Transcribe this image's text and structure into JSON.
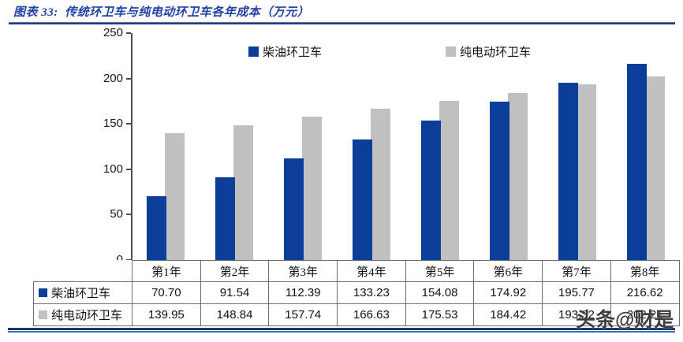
{
  "header": {
    "title": "图表 33:  传统环卫车与纯电动环卫车各年成本（万元）"
  },
  "chart_data": {
    "type": "bar",
    "title": "传统环卫车与纯电动环卫车各年成本（万元）",
    "categories": [
      "第1年",
      "第2年",
      "第3年",
      "第4年",
      "第5年",
      "第6年",
      "第7年",
      "第8年"
    ],
    "series": [
      {
        "name": "柴油环卫车",
        "color": "#0b3e98",
        "values": [
          70.7,
          91.54,
          112.39,
          133.23,
          154.08,
          174.92,
          195.77,
          216.62
        ]
      },
      {
        "name": "纯电动环卫车",
        "color": "#c0c0c0",
        "values": [
          139.95,
          148.84,
          157.74,
          166.63,
          175.53,
          184.42,
          193.32,
          202.21
        ]
      }
    ],
    "xlabel": "",
    "ylabel": "",
    "ylim": [
      0,
      250
    ],
    "yticks": [
      0,
      50,
      100,
      150,
      200,
      250
    ],
    "grid": false,
    "legend_position": "top-inside"
  },
  "table": {
    "corner_label": "",
    "header_row": [
      "第1年",
      "第2年",
      "第3年",
      "第4年",
      "第5年",
      "第6年",
      "第7年",
      "第8年"
    ],
    "rows": [
      {
        "label": "柴油环卫车",
        "swatch": "#0b3e98",
        "values": [
          "70.70",
          "91.54",
          "112.39",
          "133.23",
          "154.08",
          "174.92",
          "195.77",
          "216.62"
        ]
      },
      {
        "label": "纯电动环卫车",
        "swatch": "#c0c0c0",
        "values": [
          "139.95",
          "148.84",
          "157.74",
          "166.63",
          "175.53",
          "184.42",
          "193.32",
          "202.21"
        ]
      }
    ]
  },
  "watermark": {
    "text": "头条@财是"
  },
  "colors": {
    "title_blue": "#2143a5",
    "rule_navy": "#1c3a74",
    "rule_light_blue": "#3a6fbe",
    "axis_gray": "#4d4d4d",
    "table_border": "#6e6e6e",
    "diesel_blue": "#0b3e98",
    "electric_gray": "#c0c0c0"
  }
}
